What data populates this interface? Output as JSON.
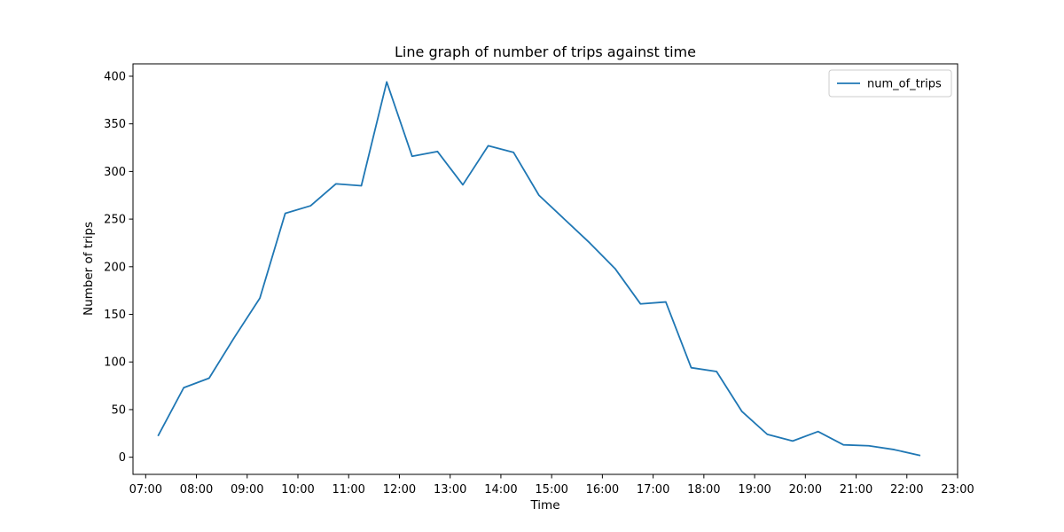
{
  "chart_data": {
    "type": "line",
    "title": "Line graph of number of trips against time",
    "xlabel": "Time",
    "ylabel": "Number of trips",
    "x_tick_labels": [
      "07:00",
      "08:00",
      "09:00",
      "10:00",
      "11:00",
      "12:00",
      "13:00",
      "14:00",
      "15:00",
      "16:00",
      "17:00",
      "18:00",
      "19:00",
      "20:00",
      "21:00",
      "22:00",
      "23:00"
    ],
    "y_ticks": [
      0,
      50,
      100,
      150,
      200,
      250,
      300,
      350,
      400
    ],
    "xlim": [
      "06:45",
      "23:00"
    ],
    "ylim": [
      -18,
      413
    ],
    "grid": false,
    "legend_position": "top-right",
    "series": [
      {
        "name": "num_of_trips",
        "color": "#1f77b4",
        "x": [
          "07:15",
          "07:45",
          "08:15",
          "08:45",
          "09:15",
          "09:45",
          "10:15",
          "10:45",
          "11:15",
          "11:45",
          "12:15",
          "12:45",
          "13:15",
          "13:45",
          "14:15",
          "14:45",
          "15:15",
          "15:45",
          "16:15",
          "16:45",
          "17:15",
          "17:45",
          "18:15",
          "18:45",
          "19:15",
          "19:45",
          "20:15",
          "20:45",
          "21:15",
          "21:45",
          "22:15"
        ],
        "values": [
          23,
          73,
          83,
          126,
          167,
          256,
          264,
          287,
          285,
          394,
          316,
          321,
          286,
          327,
          320,
          275,
          250,
          225,
          198,
          161,
          163,
          94,
          90,
          48,
          24,
          17,
          27,
          13,
          12,
          8,
          2
        ]
      }
    ]
  }
}
